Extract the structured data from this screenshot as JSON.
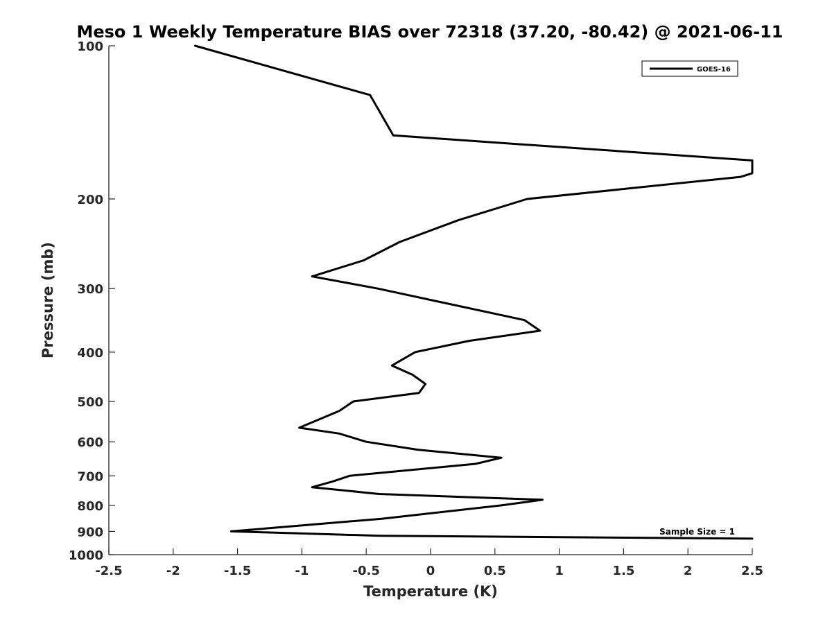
{
  "chart_data": {
    "type": "line",
    "title": "Meso 1 Weekly Temperature BIAS over 72318 (37.20, -80.42) @ 2021-06-11",
    "xlabel": "Temperature (K)",
    "ylabel": "Pressure (mb)",
    "xlim": [
      -2.5,
      2.5
    ],
    "ylim": [
      100,
      1000
    ],
    "y_scale": "log",
    "y_reversed": true,
    "x_ticks": [
      "-2.5",
      "-2",
      "-1.5",
      "-1",
      "-0.5",
      "0",
      "0.5",
      "1",
      "1.5",
      "2",
      "2.5"
    ],
    "x_tick_values": [
      -2.5,
      -2,
      -1.5,
      -1,
      -0.5,
      0,
      0.5,
      1,
      1.5,
      2,
      2.5
    ],
    "y_ticks": [
      "100",
      "200",
      "300",
      "400",
      "500",
      "600",
      "700",
      "800",
      "900",
      "1000"
    ],
    "y_tick_values": [
      100,
      200,
      300,
      400,
      500,
      600,
      700,
      800,
      900,
      1000
    ],
    "grid": false,
    "legend": {
      "position": "top-right",
      "entries": [
        "GOES-16"
      ]
    },
    "annotation": "Sample Size = 1",
    "series": [
      {
        "name": "GOES-16",
        "color": "#000000",
        "points": [
          [
            -1.83,
            100
          ],
          [
            -0.47,
            125
          ],
          [
            -0.29,
            150
          ],
          [
            2.5,
            168
          ],
          [
            2.5,
            178
          ],
          [
            2.41,
            181
          ],
          [
            0.75,
            200
          ],
          [
            0.22,
            220
          ],
          [
            -0.24,
            243
          ],
          [
            -0.52,
            264
          ],
          [
            -0.92,
            284
          ],
          [
            -0.41,
            300
          ],
          [
            0.73,
            346
          ],
          [
            0.85,
            363
          ],
          [
            0.3,
            380
          ],
          [
            -0.12,
            400
          ],
          [
            -0.3,
            425
          ],
          [
            -0.14,
            443
          ],
          [
            -0.04,
            462
          ],
          [
            -0.09,
            481
          ],
          [
            -0.6,
            500
          ],
          [
            -0.71,
            522
          ],
          [
            -1.02,
            563
          ],
          [
            -0.71,
            578
          ],
          [
            -0.5,
            600
          ],
          [
            -0.1,
            622
          ],
          [
            0.55,
            645
          ],
          [
            0.35,
            663
          ],
          [
            -0.63,
            700
          ],
          [
            -0.76,
            718
          ],
          [
            -0.92,
            737
          ],
          [
            -0.4,
            760
          ],
          [
            0.87,
            780
          ],
          [
            0.55,
            800
          ],
          [
            -0.38,
            850
          ],
          [
            -1.55,
            900
          ],
          [
            -0.4,
            918
          ],
          [
            2.5,
            930
          ]
        ]
      }
    ]
  }
}
